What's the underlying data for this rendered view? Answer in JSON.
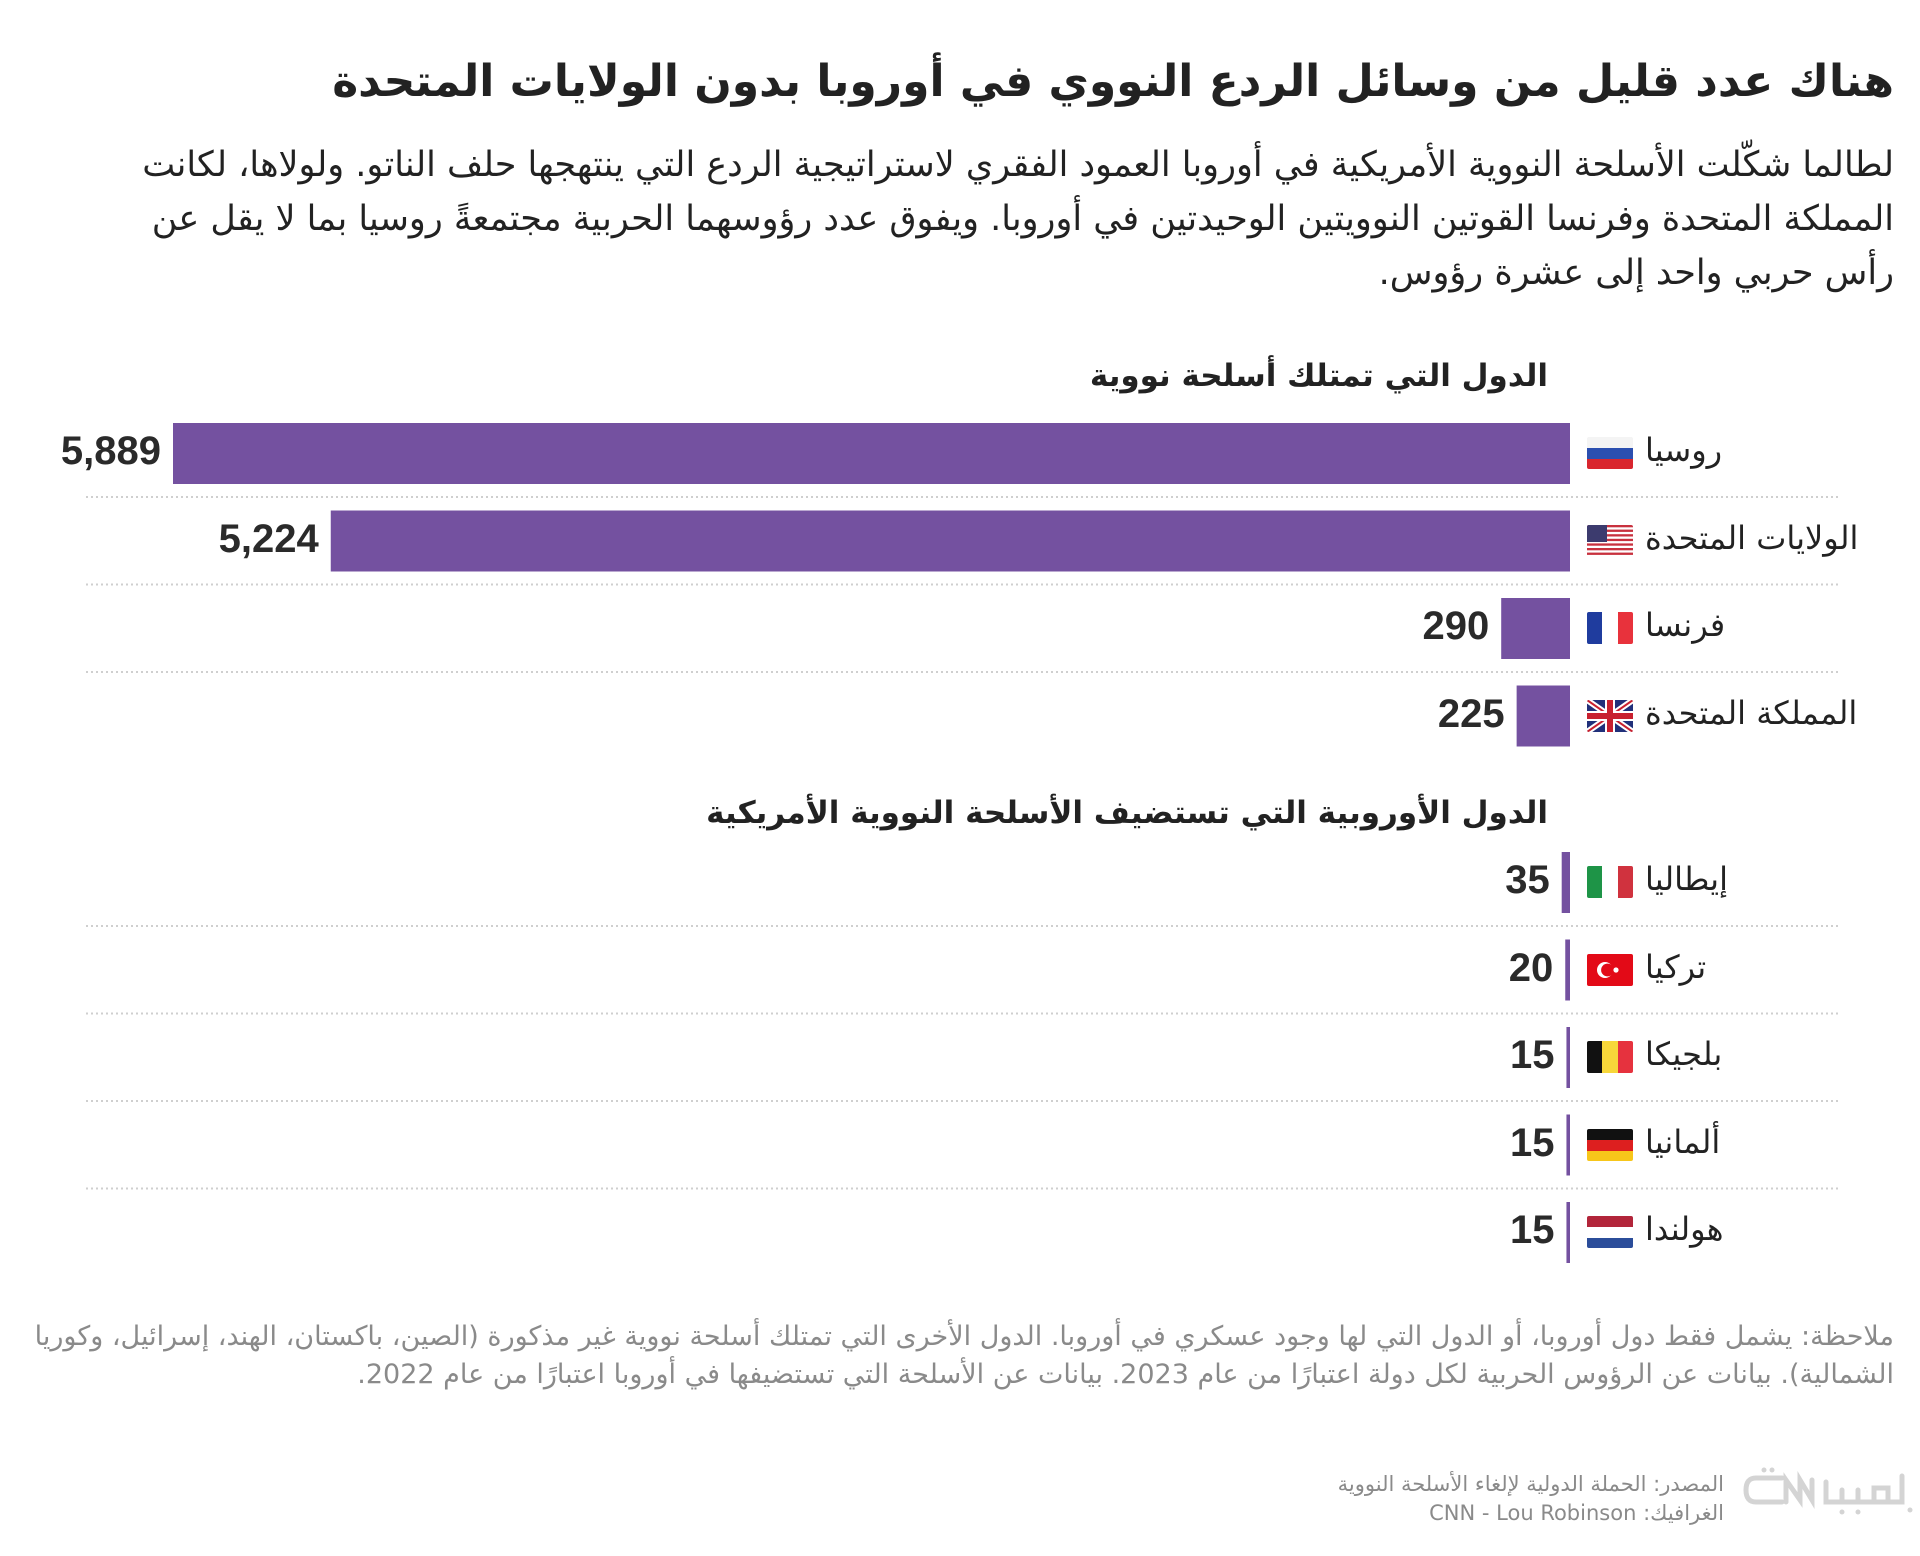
{
  "title": "هناك عدد قليل من وسائل الردع النووي في أوروبا بدون الولايات المتحدة",
  "subtitle": "لطالما شكّلت الأسلحة النووية الأمريكية في أوروبا العمود الفقري لاستراتيجية الردع التي ينتهجها حلف الناتو. ولولاها، لكانت المملكة المتحدة وفرنسا القوتين النوويتين الوحيدتين في أوروبا. ويفوق عدد رؤوسهما الحربية مجتمعةً روسيا بما لا يقل عن رأس حربي واحد إلى عشرة رؤوس.",
  "colors": {
    "bar": "#7451a0",
    "text": "#222222",
    "muted": "#8a8a8a",
    "gridline": "#cfcfcf"
  },
  "chart_data": {
    "type": "bar",
    "orientation": "horizontal",
    "title": "هناك عدد قليل من وسائل الردع النووي في أوروبا بدون الولايات المتحدة",
    "xlabel": "",
    "ylabel": "",
    "xlim": [
      0,
      5889
    ],
    "grid": false,
    "legend": "none",
    "groups": [
      {
        "heading": "الدول التي تمتلك أسلحة نووية",
        "rows": [
          {
            "country": "روسيا",
            "flag": "flag-russia-icon",
            "value": 5889,
            "label": "5,889"
          },
          {
            "country": "الولايات المتحدة",
            "flag": "flag-usa-icon",
            "value": 5224,
            "label": "5,224"
          },
          {
            "country": "فرنسا",
            "flag": "flag-france-icon",
            "value": 290,
            "label": "290"
          },
          {
            "country": "المملكة المتحدة",
            "flag": "flag-uk-icon",
            "value": 225,
            "label": "225"
          }
        ]
      },
      {
        "heading": "الدول الأوروبية التي تستضيف الأسلحة النووية الأمريكية",
        "rows": [
          {
            "country": "إيطاليا",
            "flag": "flag-italy-icon",
            "value": 35,
            "label": "35"
          },
          {
            "country": "تركيا",
            "flag": "flag-turkey-icon",
            "value": 20,
            "label": "20"
          },
          {
            "country": "بلجيكا",
            "flag": "flag-belgium-icon",
            "value": 15,
            "label": "15"
          },
          {
            "country": "ألمانيا",
            "flag": "flag-germany-icon",
            "value": 15,
            "label": "15"
          },
          {
            "country": "هولندا",
            "flag": "flag-netherlands-icon",
            "value": 15,
            "label": "15"
          }
        ]
      }
    ]
  },
  "footnote": "ملاحظة: يشمل فقط دول أوروبا، أو الدول التي لها وجود عسكري في أوروبا. الدول الأخرى التي تمتلك أسلحة نووية غير مذكورة (الصين، باكستان، الهند، إسرائيل، وكوريا الشمالية). بيانات عن الرؤوس الحربية لكل دولة اعتبارًا من عام 2023. بيانات عن الأسلحة التي تستضيفها في أوروبا اعتبارًا من عام 2022.",
  "source": {
    "line1": "المصدر: الحملة الدولية لإلغاء الأسلحة النووية",
    "line2": "الغرافيك: CNN - Lou Robinson"
  },
  "logo": {
    "name": "cnn-arabic-logo",
    "text": "CNN بالعربية"
  }
}
